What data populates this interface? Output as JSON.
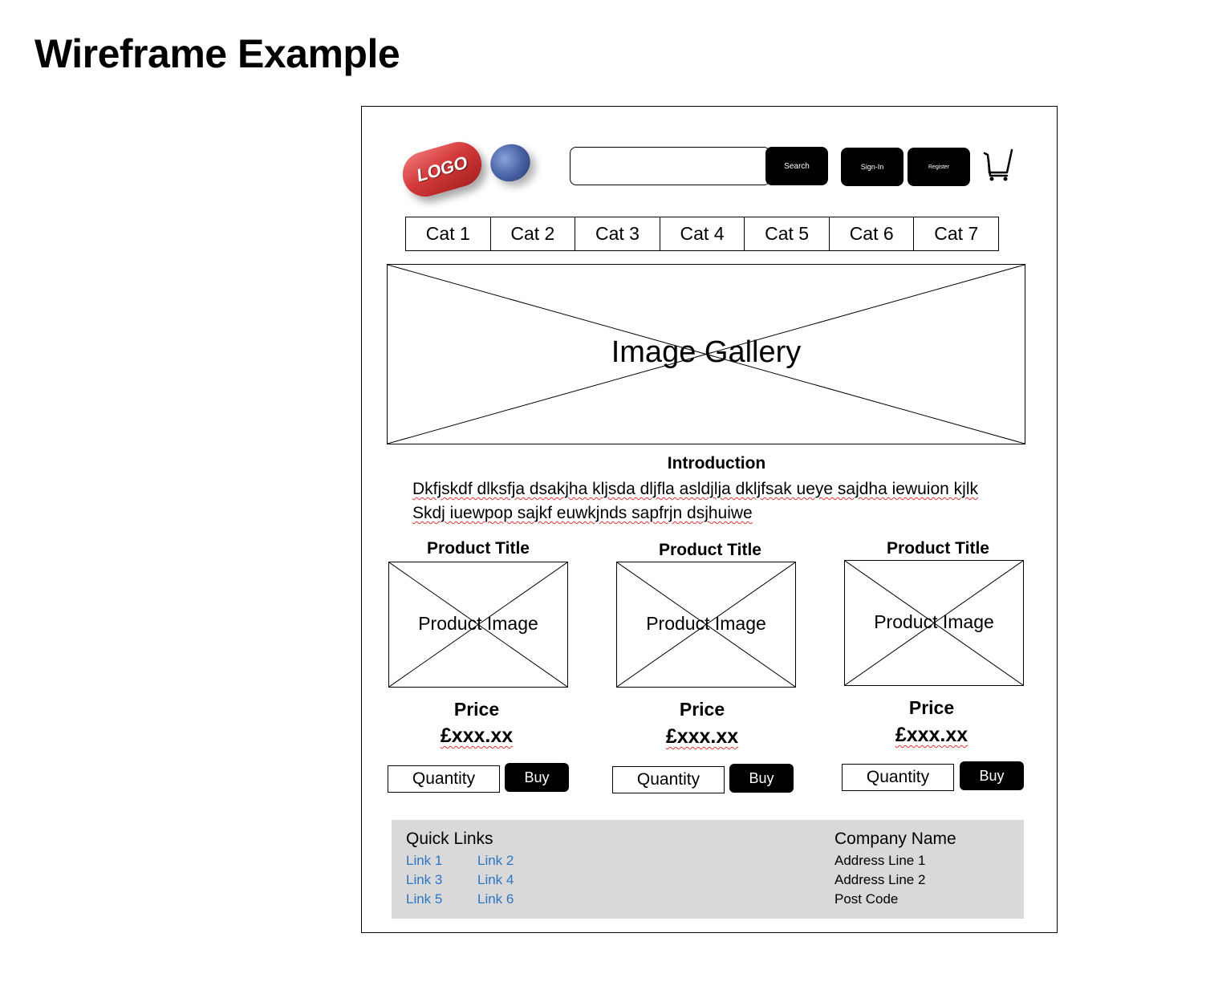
{
  "slide": {
    "title": "Wireframe Example"
  },
  "header": {
    "logo_text": "LOGO",
    "search_label": "Search",
    "signin_label": "Sign-In",
    "register_label": "Register"
  },
  "nav": {
    "categories": [
      "Cat 1",
      "Cat 2",
      "Cat 3",
      "Cat 4",
      "Cat 5",
      "Cat 6",
      "Cat 7"
    ]
  },
  "gallery": {
    "label": "Image Gallery"
  },
  "intro": {
    "heading": "Introduction",
    "line1": "Dkfjskdf dlksfja dsakjha kljsda dljfla asldjlja dkljfsak ueye sajdha iewuion kjlk",
    "line2": "Skdj iuewpop sajkf euwkjnds sapfrjn dsjhuiwe"
  },
  "products": [
    {
      "title": "Product Title",
      "image_label": "Product Image",
      "price_label": "Price",
      "price": "£xxx.xx",
      "quantity_label": "Quantity",
      "buy_label": "Buy"
    },
    {
      "title": "Product Title",
      "image_label": "Product Image",
      "price_label": "Price",
      "price": "£xxx.xx",
      "quantity_label": "Quantity",
      "buy_label": "Buy"
    },
    {
      "title": "Product Title",
      "image_label": "Product Image",
      "price_label": "Price",
      "price": "£xxx.xx",
      "quantity_label": "Quantity",
      "buy_label": "Buy"
    }
  ],
  "footer": {
    "quick_links_title": "Quick Links",
    "links": [
      "Link 1",
      "Link 2",
      "Link 3",
      "Link 4",
      "Link 5",
      "Link 6"
    ],
    "company_name": "Company Name",
    "address_line1": "Address Line 1",
    "address_line2": "Address Line 2",
    "post_code": "Post Code"
  },
  "colors": {
    "logo_red": "#d33a3a",
    "logo_blue": "#4a64a8",
    "link_blue": "#2e75c6",
    "footer_bg": "#d9d9d9"
  }
}
